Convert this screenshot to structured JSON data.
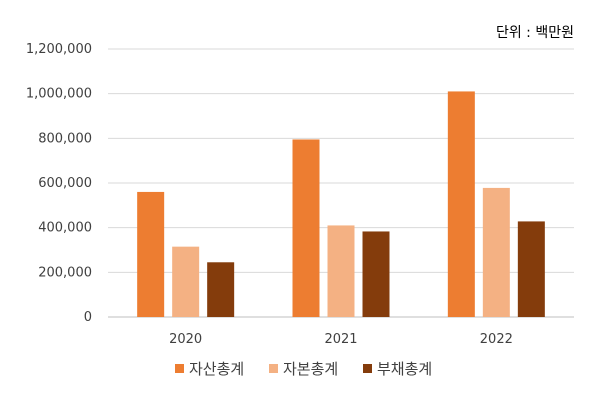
{
  "chart_data": {
    "type": "bar",
    "unit_label": "단위 : 백만원",
    "categories": [
      "2020",
      "2021",
      "2022"
    ],
    "series": [
      {
        "name": "자산총계",
        "color": "#ED7D31",
        "values": [
          560000,
          795000,
          1010000
        ]
      },
      {
        "name": "자본총계",
        "color": "#F4B183",
        "values": [
          315000,
          410000,
          578000
        ]
      },
      {
        "name": "부채총계",
        "color": "#843C0C",
        "values": [
          245000,
          383000,
          428000
        ]
      }
    ],
    "ylim": [
      0,
      1200000
    ],
    "yticks": [
      0,
      200000,
      400000,
      600000,
      800000,
      1000000,
      1200000
    ],
    "ytick_labels": [
      "0",
      "200,000",
      "400,000",
      "600,000",
      "800,000",
      "1,000,000",
      "1,200,000"
    ],
    "grid": true,
    "legend_position": "bottom"
  }
}
